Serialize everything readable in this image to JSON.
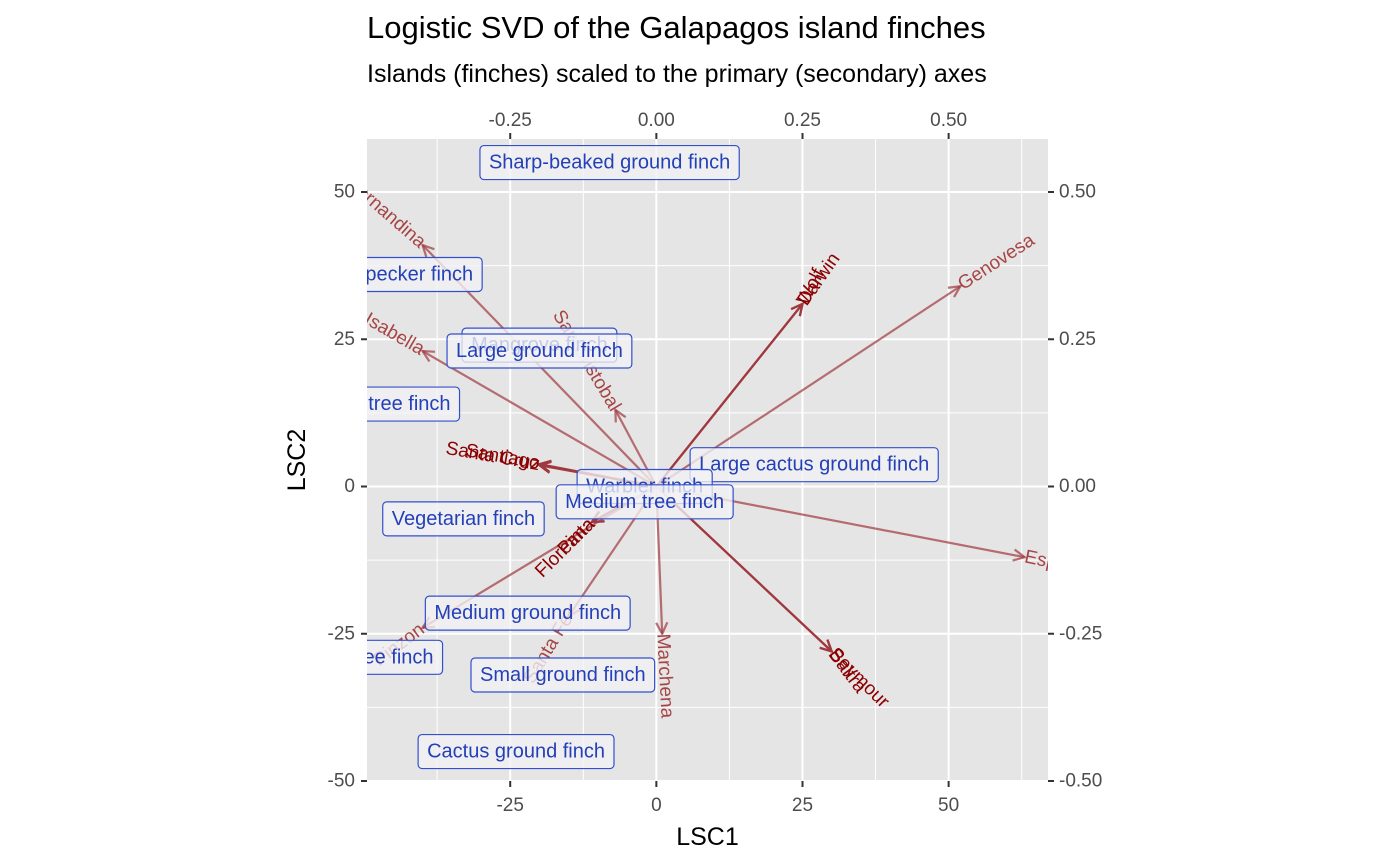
{
  "chart_data": {
    "type": "scatter",
    "title": "Logistic SVD of the Galapagos island finches",
    "subtitle": "Islands (finches) scaled to the primary (secondary) axes",
    "xlabel": "LSC1",
    "ylabel": "LSC2",
    "xlim": [
      -49.5,
      67
    ],
    "ylim": [
      -50,
      59
    ],
    "x_ticks": [
      -25,
      0,
      25,
      50
    ],
    "y_ticks": [
      -50,
      -25,
      0,
      25,
      50
    ],
    "secondary_x_ticks": [
      "-0.25",
      "0.00",
      "0.25",
      "0.50"
    ],
    "secondary_x_tick_values": [
      -0.25,
      0,
      0.25,
      0.5
    ],
    "secondary_y_ticks": [
      "-0.50",
      "-0.25",
      "0.00",
      "0.25",
      "0.50"
    ],
    "secondary_y_tick_values": [
      -0.5,
      -0.25,
      0,
      0.25,
      0.5
    ],
    "secondary_scale": 100,
    "grid": true,
    "colors": {
      "panel_bg": "#e5e5e5",
      "grid": "#ffffff",
      "island_text": "#8b0000",
      "arrow": "#a0393f",
      "finch_text": "#2440b8",
      "finch_border": "#3350cc",
      "finch_bg": "#f2f2f5"
    },
    "islands": [
      {
        "name": "Fernandina",
        "x": -40,
        "y": 41,
        "angle": 41,
        "ha": "end",
        "alpha": 0.7
      },
      {
        "name": "Isabella",
        "x": -40,
        "y": 23,
        "angle": 30,
        "ha": "end",
        "alpha": 0.7
      },
      {
        "name": "San Cristobal",
        "x": -7,
        "y": 13,
        "angle": 59,
        "ha": "end",
        "alpha": 0.7
      },
      {
        "name": "Santiago",
        "x": -20,
        "y": 3.8,
        "angle": 10,
        "ha": "end",
        "alpha": 1
      },
      {
        "name": "Santa Cruz",
        "x": -20,
        "y": 3.6,
        "angle": 10,
        "ha": "end",
        "alpha": 1
      },
      {
        "name": "Wolf",
        "x": 25,
        "y": 31,
        "angle": -62,
        "ha": "start",
        "alpha": 1
      },
      {
        "name": "Darwin",
        "x": 25,
        "y": 31,
        "angle": -55,
        "ha": "start",
        "alpha": 1
      },
      {
        "name": "Genovesa",
        "x": 52,
        "y": 34,
        "angle": -33,
        "ha": "start",
        "alpha": 0.7
      },
      {
        "name": "Espanola",
        "x": 63,
        "y": -12,
        "angle": 12,
        "ha": "start",
        "alpha": 0.7
      },
      {
        "name": "Baltra",
        "x": 30,
        "y": -28,
        "angle": 53,
        "ha": "start",
        "alpha": 1
      },
      {
        "name": "Seymour",
        "x": 30,
        "y": -28,
        "angle": 45,
        "ha": "start",
        "alpha": 1
      },
      {
        "name": "Marchena",
        "x": 1,
        "y": -25,
        "angle": 87,
        "ha": "start",
        "alpha": 0.7
      },
      {
        "name": "Santa Fe",
        "x": -15,
        "y": -22,
        "angle": -59,
        "ha": "end",
        "alpha": 0.7
      },
      {
        "name": "Floreana",
        "x": -11,
        "y": -6,
        "angle": -45,
        "ha": "end",
        "alpha": 1
      },
      {
        "name": "Pinta",
        "x": -11,
        "y": -6,
        "angle": -45,
        "ha": "end",
        "alpha": 1
      },
      {
        "name": "Pinzon",
        "x": -40,
        "y": -24,
        "angle": -37,
        "ha": "end",
        "alpha": 0.7
      }
    ],
    "finches": [
      {
        "name": "Sharp-beaked ground finch",
        "x": -8,
        "y": 55
      },
      {
        "name": "Woodpecker finch",
        "x": -45,
        "y": 36
      },
      {
        "name": "Mangrove finch",
        "x": -20,
        "y": 24
      },
      {
        "name": "Large ground finch",
        "x": -20,
        "y": 23
      },
      {
        "name": "Small tree finch",
        "x": -47,
        "y": 14
      },
      {
        "name": "Large cactus ground finch",
        "x": 27,
        "y": 3.7
      },
      {
        "name": "Warbler finch",
        "x": -2,
        "y": 0
      },
      {
        "name": "Medium tree finch",
        "x": -2,
        "y": -2.6
      },
      {
        "name": "Vegetarian finch",
        "x": -33,
        "y": -5.5
      },
      {
        "name": "Medium ground finch",
        "x": -22,
        "y": -21.5
      },
      {
        "name": "Large tree finch",
        "x": -50,
        "y": -29
      },
      {
        "name": "Small ground finch",
        "x": -16,
        "y": -32
      },
      {
        "name": "Cactus ground finch",
        "x": -24,
        "y": -45
      }
    ]
  }
}
